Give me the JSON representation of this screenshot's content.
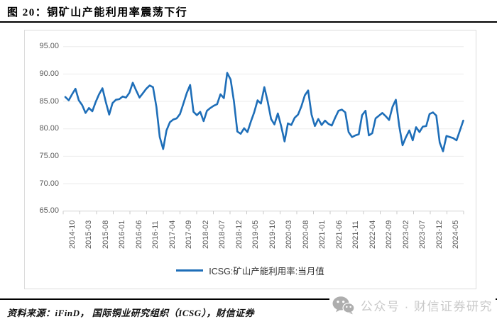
{
  "page": {
    "title": "图 20：铜矿山产能利用率震荡下行",
    "source_note": "资料来源：iFinD， 国际铜业研究组织（ICSG），财信证券",
    "watermark": {
      "icon": "wechat-icon",
      "text": "公众号 · 财信证券研究"
    }
  },
  "chart_data": {
    "type": "line",
    "title": "铜矿山产能利用率震荡下行",
    "x_start": "2014-10",
    "x_end": "2024-08",
    "frequency": "monthly",
    "x_tick_labels": [
      "2014-10",
      "2015-03",
      "2015-08",
      "2016-01",
      "2016-06",
      "2016-11",
      "2017-04",
      "2017-09",
      "2018-02",
      "2018-07",
      "2018-12",
      "2019-05",
      "2019-10",
      "2020-03",
      "2020-08",
      "2021-01",
      "2021-06",
      "2021-11",
      "2022-04",
      "2022-09",
      "2023-02",
      "2023-07",
      "2023-12",
      "2024-05"
    ],
    "x_tick_interval_months": 5,
    "y_tick_labels": [
      "95.00",
      "90.00",
      "85.00",
      "80.00",
      "75.00",
      "70.00",
      "65.00"
    ],
    "y_ticks": [
      95,
      90,
      85,
      80,
      75,
      70,
      65
    ],
    "ylim": [
      65,
      95
    ],
    "grid": "horizontal",
    "legend_position": "bottom",
    "colors": {
      "line": "#1e6eb8",
      "gridline": "#ebebeb",
      "axis": "#d5d5d5",
      "tick": "#c9c9c9",
      "axis_text": "#595959"
    },
    "series": [
      {
        "name": "ICSG:矿山产能利用率:当月值",
        "values": [
          85.8,
          85.2,
          86.3,
          87.3,
          85.2,
          84.3,
          82.9,
          83.8,
          83.2,
          84.9,
          86.3,
          87.4,
          84.9,
          82.6,
          84.7,
          85.3,
          85.4,
          85.9,
          85.7,
          86.6,
          88.4,
          87.0,
          85.7,
          86.5,
          87.3,
          87.9,
          87.6,
          84.0,
          78.5,
          76.3,
          79.7,
          81.2,
          81.7,
          81.9,
          82.7,
          84.6,
          86.5,
          88.0,
          83.1,
          82.5,
          83.1,
          81.4,
          83.3,
          83.8,
          84.2,
          84.5,
          86.3,
          85.6,
          90.2,
          89.0,
          85.0,
          79.5,
          79.1,
          80.1,
          79.4,
          81.3,
          83.0,
          85.2,
          84.6,
          87.6,
          85.0,
          81.8,
          80.8,
          82.8,
          80.5,
          77.7,
          81.0,
          80.7,
          82.0,
          82.6,
          84.1,
          86.1,
          87.0,
          82.6,
          80.5,
          81.8,
          80.7,
          81.5,
          80.9,
          80.6,
          82.0,
          83.3,
          83.5,
          83.0,
          79.4,
          78.5,
          78.8,
          79.0,
          82.5,
          83.3,
          78.8,
          79.2,
          81.9,
          82.4,
          82.9,
          82.3,
          81.6,
          84.0,
          85.3,
          80.5,
          77.0,
          78.5,
          79.7,
          77.9,
          80.3,
          79.4,
          80.4,
          80.5,
          82.7,
          83.0,
          82.4,
          77.5,
          75.9,
          78.7,
          78.5,
          78.3,
          77.9,
          79.7,
          81.5
        ]
      }
    ]
  }
}
